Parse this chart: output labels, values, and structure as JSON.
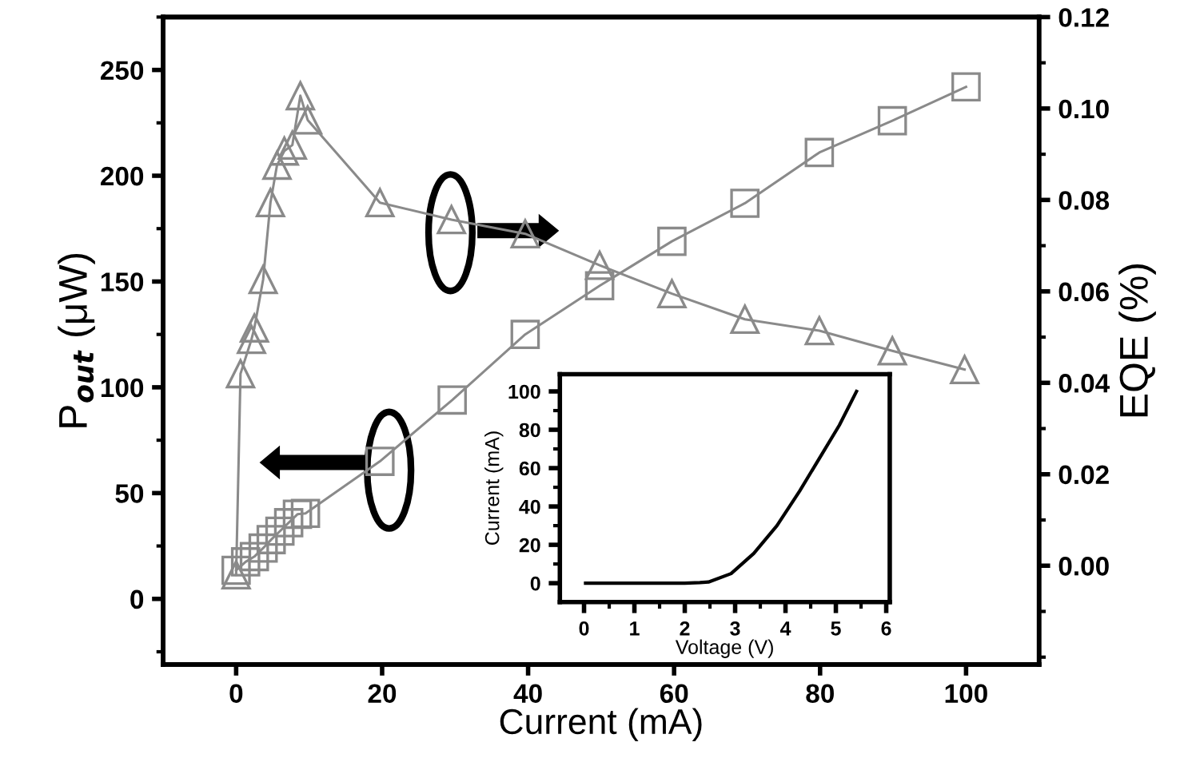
{
  "chart_data": [
    {
      "type": "line",
      "xlabel": "Current (mA)",
      "ylabel": "P$_{out}$ (μW)",
      "y2label": "EQE (%)",
      "xlim": [
        -10,
        110
      ],
      "xticks": [
        0,
        20,
        40,
        60,
        80,
        100
      ],
      "ylim": [
        -31,
        275
      ],
      "yticks": [
        0,
        50,
        100,
        150,
        200,
        250
      ],
      "y2lim": [
        -0.0216,
        0.12
      ],
      "y2ticks": [
        {
          "value": 0,
          "label": "0.00"
        },
        {
          "value": 0.02,
          "label": "0.02"
        },
        {
          "value": 0.04,
          "label": "0.04"
        },
        {
          "value": 0.06,
          "label": "0.06"
        },
        {
          "value": 0.08,
          "label": "0.08"
        },
        {
          "value": 0.1,
          "label": "0.10"
        },
        {
          "value": 0.12,
          "label": "0.12"
        }
      ],
      "series": [
        {
          "color": "#8a8a8a",
          "marker": "square",
          "x": [
            0,
            1.3,
            2.5,
            3.7,
            4.8,
            6,
            7.2,
            8.4,
            9.5,
            19.7,
            29.6,
            39.6,
            49.8,
            59.7,
            69.7,
            79.9,
            89.9,
            100
          ],
          "values": [
            13.5,
            17.5,
            20,
            24,
            28,
            32,
            36,
            40,
            40.4,
            65,
            94,
            125,
            148,
            169,
            187,
            211,
            226,
            242
          ]
        },
        {
          "color": "#8a8a8a",
          "marker": "triangle",
          "axis": "y2",
          "x": [
            0,
            0.6,
            2.1,
            2.5,
            3.7,
            4.7,
            5.6,
            6.6,
            7.7,
            8.8,
            9.8,
            19.7,
            29.5,
            39.6,
            49.8,
            59.7,
            69.7,
            79.9,
            89.9,
            99.8
          ],
          "values": [
            -0.002,
            0.042,
            0.0495,
            0.052,
            0.0626,
            0.0794,
            0.0876,
            0.0907,
            0.092,
            0.1028,
            0.0975,
            0.0794,
            0.0757,
            0.0726,
            0.0657,
            0.0595,
            0.0539,
            0.0514,
            0.047,
            0.0429
          ]
        }
      ]
    },
    {
      "type": "line",
      "xlabel": "Voltage (V)",
      "ylabel": "Current (mA)",
      "xlim": [
        -0.48,
        6.07
      ],
      "xticks": [
        0,
        1,
        2,
        3,
        4,
        5,
        6
      ],
      "ylim": [
        -9.8,
        109
      ],
      "yticks": [
        0,
        20,
        40,
        60,
        80,
        100
      ],
      "series": [
        {
          "color": "#000000",
          "marker": "none",
          "x": [
            0.03,
            1,
            2,
            2.3,
            2.47,
            2.92,
            3.37,
            3.83,
            4.28,
            4.73,
            5.07,
            5.41
          ],
          "values": [
            0,
            0,
            0,
            0.3,
            0.6,
            5,
            15.5,
            30,
            48,
            67.6,
            82.4,
            100
          ]
        }
      ]
    }
  ]
}
